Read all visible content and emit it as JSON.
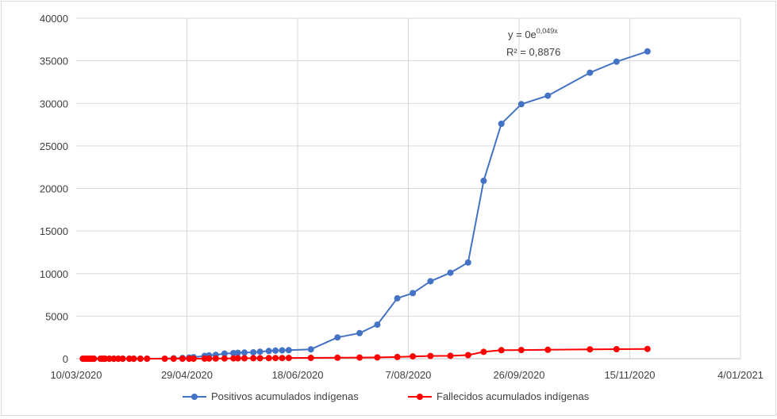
{
  "chart_data": {
    "type": "line",
    "title": "",
    "xlabel": "",
    "ylabel": "",
    "x_axis": {
      "type": "date",
      "min": "2020-03-10",
      "max": "2021-01-04",
      "tick_labels": [
        "10/03/2020",
        "29/04/2020",
        "18/06/2020",
        "7/08/2020",
        "26/09/2020",
        "15/11/2020",
        "4/01/2021"
      ],
      "tick_dates": [
        "2020-03-10",
        "2020-04-29",
        "2020-06-18",
        "2020-08-07",
        "2020-09-26",
        "2020-11-15",
        "2021-01-04"
      ]
    },
    "y_axis": {
      "min": 0,
      "max": 40000,
      "tick_labels": [
        "0",
        "5000",
        "10000",
        "15000",
        "20000",
        "25000",
        "30000",
        "35000",
        "40000"
      ],
      "tick_values": [
        0,
        5000,
        10000,
        15000,
        20000,
        25000,
        30000,
        35000,
        40000
      ]
    },
    "grid": "vertical-and-horizontal",
    "legend_position": "bottom",
    "trendline_label": {
      "equation_base": "y = 0e",
      "equation_exponent": "0,049x",
      "r_squared": "R² = 0,8876"
    },
    "series": [
      {
        "name": "Positivos acumulados indígenas",
        "color": "#4472c4",
        "points": [
          [
            "2020-03-13",
            0
          ],
          [
            "2020-03-14",
            0
          ],
          [
            "2020-03-15",
            0
          ],
          [
            "2020-03-16",
            0
          ],
          [
            "2020-03-17",
            0
          ],
          [
            "2020-03-18",
            0
          ],
          [
            "2020-03-21",
            0
          ],
          [
            "2020-03-22",
            0
          ],
          [
            "2020-03-23",
            0
          ],
          [
            "2020-03-25",
            0
          ],
          [
            "2020-03-27",
            0
          ],
          [
            "2020-03-29",
            0
          ],
          [
            "2020-03-31",
            0
          ],
          [
            "2020-04-03",
            0
          ],
          [
            "2020-04-05",
            0
          ],
          [
            "2020-04-08",
            0
          ],
          [
            "2020-04-11",
            0
          ],
          [
            "2020-04-23",
            50
          ],
          [
            "2020-04-27",
            80
          ],
          [
            "2020-04-30",
            130
          ],
          [
            "2020-05-02",
            180
          ],
          [
            "2020-05-07",
            330
          ],
          [
            "2020-05-09",
            380
          ],
          [
            "2020-05-12",
            450
          ],
          [
            "2020-05-16",
            600
          ],
          [
            "2020-05-20",
            650
          ],
          [
            "2020-05-22",
            690
          ],
          [
            "2020-05-25",
            720
          ],
          [
            "2020-05-29",
            750
          ],
          [
            "2020-06-01",
            820
          ],
          [
            "2020-06-05",
            900
          ],
          [
            "2020-06-08",
            950
          ],
          [
            "2020-06-11",
            980
          ],
          [
            "2020-06-14",
            1000
          ],
          [
            "2020-06-24",
            1100
          ],
          [
            "2020-07-06",
            2500
          ],
          [
            "2020-07-16",
            3000
          ],
          [
            "2020-07-24",
            4000
          ],
          [
            "2020-08-02",
            7100
          ],
          [
            "2020-08-09",
            7700
          ],
          [
            "2020-08-17",
            9100
          ],
          [
            "2020-08-26",
            10100
          ],
          [
            "2020-09-03",
            11300
          ],
          [
            "2020-09-10",
            20900
          ],
          [
            "2020-09-18",
            27600
          ],
          [
            "2020-09-27",
            29900
          ],
          [
            "2020-10-09",
            30900
          ],
          [
            "2020-10-28",
            33600
          ],
          [
            "2020-11-09",
            34900
          ],
          [
            "2020-11-23",
            36100
          ]
        ]
      },
      {
        "name": "Fallecidos acumulados indígenas",
        "color": "#ff0000",
        "points": [
          [
            "2020-03-13",
            0
          ],
          [
            "2020-03-14",
            0
          ],
          [
            "2020-03-15",
            0
          ],
          [
            "2020-03-16",
            0
          ],
          [
            "2020-03-17",
            0
          ],
          [
            "2020-03-18",
            0
          ],
          [
            "2020-03-21",
            0
          ],
          [
            "2020-03-22",
            0
          ],
          [
            "2020-03-23",
            0
          ],
          [
            "2020-03-25",
            0
          ],
          [
            "2020-03-27",
            0
          ],
          [
            "2020-03-29",
            0
          ],
          [
            "2020-03-31",
            0
          ],
          [
            "2020-04-03",
            0
          ],
          [
            "2020-04-05",
            0
          ],
          [
            "2020-04-08",
            0
          ],
          [
            "2020-04-11",
            0
          ],
          [
            "2020-04-19",
            0
          ],
          [
            "2020-04-23",
            0
          ],
          [
            "2020-04-27",
            0
          ],
          [
            "2020-04-30",
            0
          ],
          [
            "2020-05-02",
            0
          ],
          [
            "2020-05-07",
            10
          ],
          [
            "2020-05-09",
            15
          ],
          [
            "2020-05-12",
            20
          ],
          [
            "2020-05-16",
            30
          ],
          [
            "2020-05-20",
            40
          ],
          [
            "2020-05-22",
            45
          ],
          [
            "2020-05-25",
            50
          ],
          [
            "2020-05-29",
            55
          ],
          [
            "2020-06-01",
            60
          ],
          [
            "2020-06-05",
            65
          ],
          [
            "2020-06-08",
            70
          ],
          [
            "2020-06-11",
            75
          ],
          [
            "2020-06-14",
            80
          ],
          [
            "2020-06-24",
            90
          ],
          [
            "2020-07-06",
            110
          ],
          [
            "2020-07-16",
            130
          ],
          [
            "2020-07-24",
            150
          ],
          [
            "2020-08-02",
            200
          ],
          [
            "2020-08-09",
            270
          ],
          [
            "2020-08-17",
            320
          ],
          [
            "2020-08-26",
            340
          ],
          [
            "2020-09-03",
            420
          ],
          [
            "2020-09-10",
            800
          ],
          [
            "2020-09-18",
            1000
          ],
          [
            "2020-09-27",
            1020
          ],
          [
            "2020-10-09",
            1040
          ],
          [
            "2020-10-28",
            1100
          ],
          [
            "2020-11-09",
            1120
          ],
          [
            "2020-11-23",
            1150
          ]
        ]
      }
    ]
  }
}
